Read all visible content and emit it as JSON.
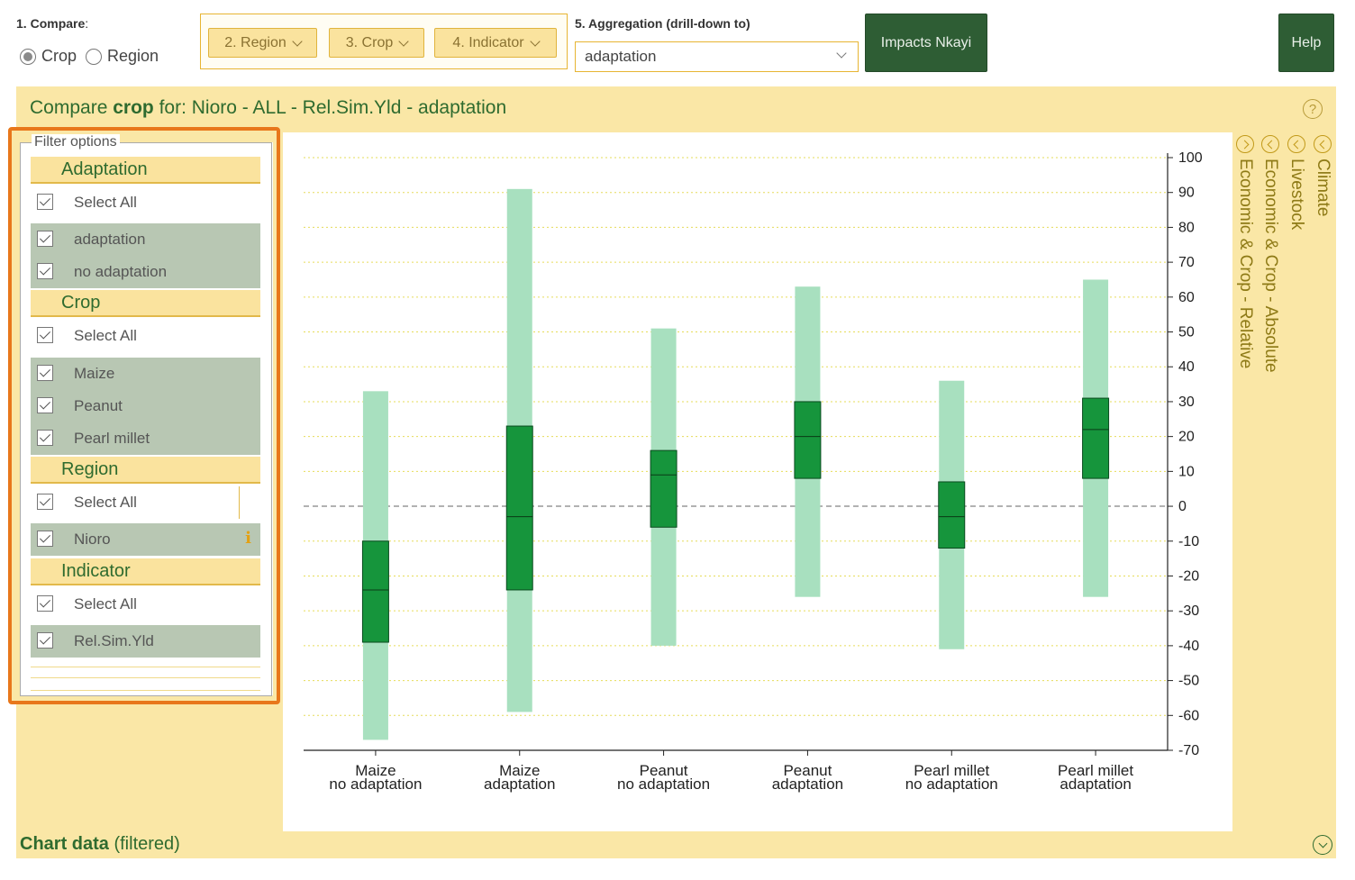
{
  "toolbar": {
    "compare_num": "1.",
    "compare_label": "Compare",
    "compare_suffix": ":",
    "radio_crop": "Crop",
    "radio_region": "Region",
    "dd_region": "2. Region",
    "dd_crop": "3. Crop",
    "dd_indicator": "4. Indicator",
    "agg_label": "5. Aggregation (drill-down to)",
    "agg_value": "adaptation",
    "impacts_button": "Impacts Nkayi",
    "help_button": "Help"
  },
  "panel": {
    "title_prefix": "Compare",
    "title_bold": "crop",
    "title_suffix": " for: Nioro - ALL - Rel.Sim.Yld - adaptation",
    "help_glyph": "?"
  },
  "filter": {
    "legend": "Filter options",
    "adaptation": {
      "header": "Adaptation",
      "select_all": "Select All",
      "items": [
        "adaptation",
        "no adaptation"
      ]
    },
    "crop": {
      "header": "Crop",
      "select_all": "Select All",
      "items": [
        "Maize",
        "Peanut",
        "Pearl millet"
      ]
    },
    "region": {
      "header": "Region",
      "select_all": "Select All",
      "items": [
        "Nioro"
      ]
    },
    "indicator": {
      "header": "Indicator",
      "select_all": "Select All",
      "items": [
        "Rel.Sim.Yld"
      ]
    }
  },
  "side_tabs": [
    "Climate",
    "Livestock",
    "Economic & Crop - Absolute",
    "Economic & Crop - Relative"
  ],
  "bottom": {
    "title_bold": "Chart data",
    "title_suffix": " (filtered)"
  },
  "colors": {
    "whisker": "#a8e0bf",
    "box": "#16953c",
    "panel": "#fae7a6",
    "accent_orange": "#e8771b",
    "dark_green_button": "#2e5d34"
  },
  "chart_data": {
    "type": "box",
    "ylim": [
      -70,
      100
    ],
    "yticks": [
      100,
      90,
      80,
      70,
      60,
      50,
      40,
      30,
      20,
      10,
      0,
      -10,
      -20,
      -30,
      -40,
      -50,
      -60,
      -70
    ],
    "y_axis_side": "right",
    "zero_line": "dashed",
    "grid": "horizontal dotted",
    "categories": [
      {
        "line1": "Maize",
        "line2": "no adaptation",
        "min": -67,
        "q1": -39,
        "median": -24,
        "q3": -10,
        "max": 33
      },
      {
        "line1": "Maize",
        "line2": "adaptation",
        "min": -59,
        "q1": -24,
        "median": -3,
        "q3": 23,
        "max": 91
      },
      {
        "line1": "Peanut",
        "line2": "no adaptation",
        "min": -40,
        "q1": -6,
        "median": 9,
        "q3": 16,
        "max": 51
      },
      {
        "line1": "Peanut",
        "line2": "adaptation",
        "min": -26,
        "q1": 8,
        "median": 20,
        "q3": 30,
        "max": 63
      },
      {
        "line1": "Pearl millet",
        "line2": "no adaptation",
        "min": -41,
        "q1": -12,
        "median": -3,
        "q3": 7,
        "max": 36
      },
      {
        "line1": "Pearl millet",
        "line2": "adaptation",
        "min": -26,
        "q1": 8,
        "median": 22,
        "q3": 31,
        "max": 65
      }
    ]
  }
}
